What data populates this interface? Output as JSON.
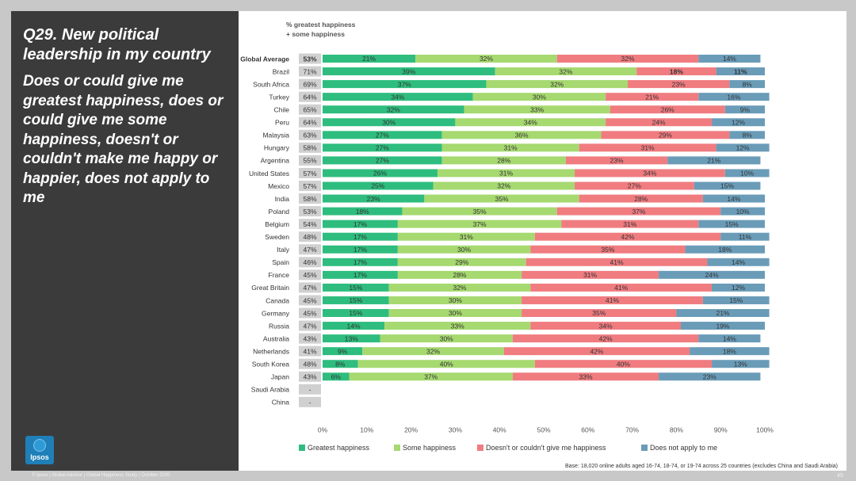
{
  "panel": {
    "title": "Q29. New political leadership in my country",
    "body": "Does or could give me greatest happiness, does or could give me some happiness, doesn't or couldn't make me happy or happier, does not apply to me",
    "logo_text": "Ipsos"
  },
  "column_header": "% greatest happiness + some happiness",
  "footer": "© Ipsos | Global Advisor | Global Happiness Study | October 2020",
  "page_number": "45",
  "base_note": "Base: 18,020 online adults aged 16-74, 18-74, or 19-74 across 25 countries (excludes China and Saudi Arabia)",
  "colors": {
    "greatest": "#2ebd7e",
    "some": "#a6d970",
    "doesnt": "#f07c80",
    "not_apply": "#6a9cb8",
    "total_box": "#d0d0d0"
  },
  "chart_data": {
    "type": "bar",
    "orientation": "horizontal",
    "stacked": true,
    "xlim": [
      0,
      100
    ],
    "x_ticks": [
      "0%",
      "10%",
      "20%",
      "30%",
      "40%",
      "50%",
      "60%",
      "70%",
      "80%",
      "90%",
      "100%"
    ],
    "legend": [
      "Greatest happiness",
      "Some happiness",
      "Doesn't or couldn't give me happiness",
      "Does not apply to me"
    ],
    "legend_position": "bottom",
    "rows": [
      {
        "label": "Global Average",
        "total": "53%",
        "bold": true,
        "values": [
          21,
          32,
          32,
          14
        ]
      },
      {
        "label": "Brazil",
        "total": "71%",
        "values": [
          39,
          32,
          18,
          11
        ],
        "bold_values": [
          2,
          3
        ]
      },
      {
        "label": "South Africa",
        "total": "69%",
        "values": [
          37,
          32,
          23,
          8
        ]
      },
      {
        "label": "Turkey",
        "total": "64%",
        "values": [
          34,
          30,
          21,
          16
        ]
      },
      {
        "label": "Chile",
        "total": "65%",
        "values": [
          32,
          33,
          26,
          9
        ]
      },
      {
        "label": "Peru",
        "total": "64%",
        "values": [
          30,
          34,
          24,
          12
        ]
      },
      {
        "label": "Malaysia",
        "total": "63%",
        "values": [
          27,
          36,
          29,
          8
        ]
      },
      {
        "label": "Hungary",
        "total": "58%",
        "values": [
          27,
          31,
          31,
          12
        ]
      },
      {
        "label": "Argentina",
        "total": "55%",
        "values": [
          27,
          28,
          23,
          21
        ]
      },
      {
        "label": "United States",
        "total": "57%",
        "values": [
          26,
          31,
          34,
          10
        ]
      },
      {
        "label": "Mexico",
        "total": "57%",
        "values": [
          25,
          32,
          27,
          15
        ]
      },
      {
        "label": "India",
        "total": "58%",
        "values": [
          23,
          35,
          28,
          14
        ]
      },
      {
        "label": "Poland",
        "total": "53%",
        "values": [
          18,
          35,
          37,
          10
        ]
      },
      {
        "label": "Belgium",
        "total": "54%",
        "values": [
          17,
          37,
          31,
          15
        ]
      },
      {
        "label": "Sweden",
        "total": "48%",
        "values": [
          17,
          31,
          42,
          11
        ]
      },
      {
        "label": "Italy",
        "total": "47%",
        "values": [
          17,
          30,
          35,
          18
        ]
      },
      {
        "label": "Spain",
        "total": "46%",
        "values": [
          17,
          29,
          41,
          14
        ]
      },
      {
        "label": "France",
        "total": "45%",
        "values": [
          17,
          28,
          31,
          24
        ]
      },
      {
        "label": "Great Britain",
        "total": "47%",
        "values": [
          15,
          32,
          41,
          12
        ]
      },
      {
        "label": "Canada",
        "total": "45%",
        "values": [
          15,
          30,
          41,
          15
        ]
      },
      {
        "label": "Germany",
        "total": "45%",
        "values": [
          15,
          30,
          35,
          21
        ]
      },
      {
        "label": "Russia",
        "total": "47%",
        "values": [
          14,
          33,
          34,
          19
        ]
      },
      {
        "label": "Australia",
        "total": "43%",
        "values": [
          13,
          30,
          42,
          14
        ]
      },
      {
        "label": "Netherlands",
        "total": "41%",
        "values": [
          9,
          32,
          42,
          18
        ]
      },
      {
        "label": "South Korea",
        "total": "48%",
        "values": [
          8,
          40,
          40,
          13
        ]
      },
      {
        "label": "Japan",
        "total": "43%",
        "values": [
          6,
          37,
          33,
          23
        ]
      },
      {
        "label": "Saudi Arabia",
        "total": "-",
        "values": []
      },
      {
        "label": "China",
        "total": "-",
        "values": []
      }
    ]
  }
}
